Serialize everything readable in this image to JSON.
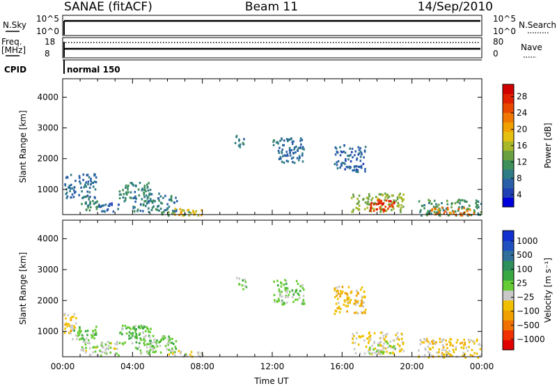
{
  "header": {
    "station": "SANAE (fitACF)",
    "beam": "Beam 11",
    "date": "14/Sep/2010"
  },
  "status_panels": {
    "nsky_label": "N.Sky",
    "nsky_ticks": [
      "10^5",
      "10^0"
    ],
    "nsearch_label": "N.Search",
    "freq_label": "Freq.",
    "freq_unit": "[MHz]",
    "freq_ticks": [
      "18",
      "8"
    ],
    "nave_ticks": [
      "80",
      "0"
    ],
    "nave_label": "Nave",
    "cpid_label": "CPID",
    "cpid_value": "normal 150"
  },
  "chart_data": [
    {
      "type": "heatmap",
      "name": "power",
      "ylabel": "Slant Range [km]",
      "xlabel": "Time UT",
      "x_ticks": [
        "00:00",
        "04:00",
        "08:00",
        "12:00",
        "16:00",
        "20:00",
        "00:00"
      ],
      "xlim": [
        0,
        24
      ],
      "ylim": [
        180,
        4600
      ],
      "y_ticks": [
        1000,
        2000,
        3000,
        4000
      ],
      "colorbar": {
        "label": "Power [dB]",
        "ticks": [
          "28",
          "24",
          "20",
          "16",
          "12",
          "8",
          "4"
        ],
        "range": [
          0,
          30
        ],
        "colors": [
          "#0000dd",
          "#1f3fb4",
          "#2a5fa8",
          "#2f7c86",
          "#3f8f5a",
          "#6aa040",
          "#a8b828",
          "#e6c010",
          "#f0a000",
          "#f07800",
          "#e84800",
          "#e02000",
          "#d00000"
        ]
      },
      "regions": [
        {
          "t0": 0.05,
          "t1": 1.9,
          "r0": 700,
          "r1": 1550,
          "v": 7
        },
        {
          "t0": 1.0,
          "t1": 2.2,
          "r0": 350,
          "r1": 700,
          "v": 10
        },
        {
          "t0": 2.0,
          "t1": 3.2,
          "r0": 300,
          "r1": 600,
          "v": 6
        },
        {
          "t0": 3.2,
          "t1": 5.0,
          "r0": 600,
          "r1": 1250,
          "v": 9
        },
        {
          "t0": 4.0,
          "t1": 6.5,
          "r0": 300,
          "r1": 900,
          "v": 8
        },
        {
          "t0": 6.3,
          "t1": 8.0,
          "r0": 180,
          "r1": 420,
          "v": 18
        },
        {
          "t0": 5.5,
          "t1": 7.5,
          "r0": 180,
          "r1": 300,
          "v": 12
        },
        {
          "t0": 9.8,
          "t1": 10.5,
          "r0": 2400,
          "r1": 2800,
          "v": 8
        },
        {
          "t0": 12.0,
          "t1": 13.8,
          "r0": 1900,
          "r1": 2700,
          "v": 7
        },
        {
          "t0": 15.5,
          "t1": 17.3,
          "r0": 1600,
          "r1": 2500,
          "v": 6
        },
        {
          "t0": 16.5,
          "t1": 19.5,
          "r0": 300,
          "r1": 900,
          "v": 14
        },
        {
          "t0": 17.5,
          "t1": 19.0,
          "r0": 300,
          "r1": 700,
          "v": 26
        },
        {
          "t0": 20.3,
          "t1": 24.0,
          "r0": 180,
          "r1": 700,
          "v": 10
        },
        {
          "t0": 21.0,
          "t1": 23.5,
          "r0": 180,
          "r1": 450,
          "v": 22
        }
      ]
    },
    {
      "type": "heatmap",
      "name": "velocity",
      "ylabel": "Slant Range [km]",
      "xlabel": "Time UT",
      "x_ticks": [
        "00:00",
        "04:00",
        "08:00",
        "12:00",
        "16:00",
        "20:00",
        "00:00"
      ],
      "xlim": [
        0,
        24
      ],
      "ylim": [
        180,
        4600
      ],
      "y_ticks": [
        1000,
        2000,
        3000,
        4000
      ],
      "colorbar": {
        "label": "Velocity [m s⁻¹]",
        "ticks": [
          "1000",
          "500",
          "100",
          "25",
          "−25",
          "−100",
          "−500",
          "−1000"
        ],
        "range": [
          -1200,
          1200
        ],
        "colors": [
          "#e00000",
          "#f03000",
          "#f07000",
          "#f0a000",
          "#f0c000",
          "#c8c8c8",
          "#66cc33",
          "#3aa840",
          "#2f8f5a",
          "#2f6f9a",
          "#2050c0",
          "#1030d0"
        ]
      },
      "regions": [
        {
          "t0": 0.05,
          "t1": 0.8,
          "r0": 900,
          "r1": 1600,
          "v": -300
        },
        {
          "t0": 0.5,
          "t1": 1.9,
          "r0": 700,
          "r1": 1200,
          "v": 100
        },
        {
          "t0": 1.0,
          "t1": 3.2,
          "r0": 250,
          "r1": 700,
          "v": -60
        },
        {
          "t0": 3.2,
          "t1": 5.0,
          "r0": 600,
          "r1": 1250,
          "v": 150
        },
        {
          "t0": 4.0,
          "t1": 6.5,
          "r0": 300,
          "r1": 900,
          "v": 80
        },
        {
          "t0": 6.0,
          "t1": 8.0,
          "r0": 180,
          "r1": 420,
          "v": -150
        },
        {
          "t0": 9.8,
          "t1": 10.5,
          "r0": 2400,
          "r1": 2800,
          "v": 60
        },
        {
          "t0": 12.0,
          "t1": 13.8,
          "r0": 1900,
          "r1": 2700,
          "v": 80
        },
        {
          "t0": 15.5,
          "t1": 17.3,
          "r0": 1600,
          "r1": 2500,
          "v": -300
        },
        {
          "t0": 16.5,
          "t1": 19.5,
          "r0": 300,
          "r1": 1000,
          "v": -200
        },
        {
          "t0": 17.5,
          "t1": 19.0,
          "r0": 300,
          "r1": 700,
          "v": 60
        },
        {
          "t0": 20.3,
          "t1": 24.0,
          "r0": 180,
          "r1": 800,
          "v": -250
        }
      ]
    }
  ]
}
